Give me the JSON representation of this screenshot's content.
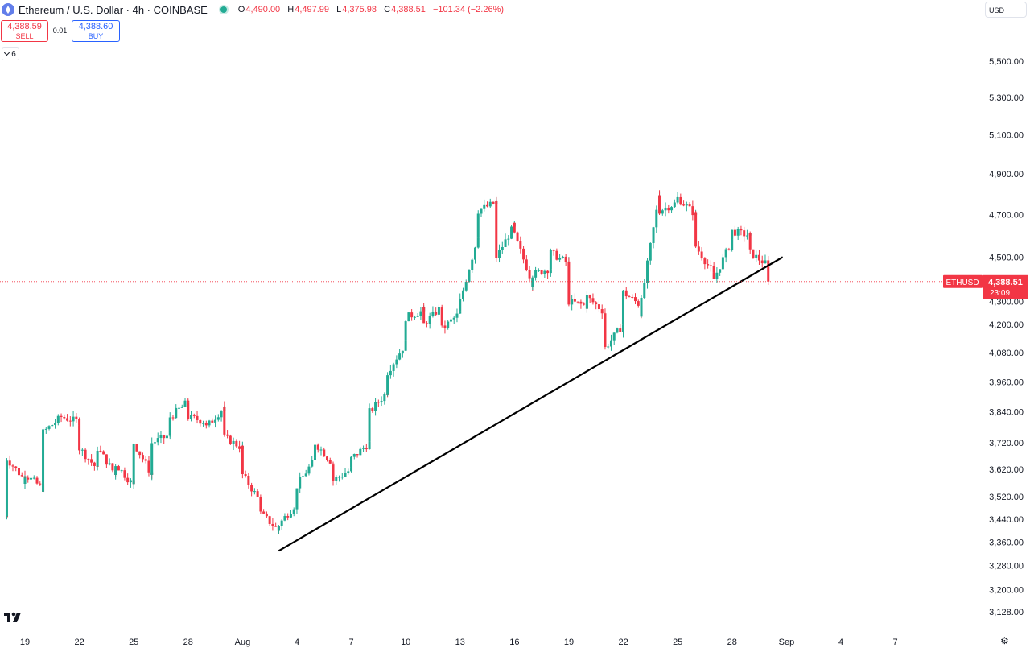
{
  "header": {
    "symbol": "Ethereum / U.S. Dollar · 4h · COINBASE",
    "open_label": "O",
    "open": "4,490.00",
    "high_label": "H",
    "high": "4,497.99",
    "low_label": "L",
    "low": "4,375.98",
    "close_label": "C",
    "close": "4,388.51",
    "change": "−101.34 (−2.26%)"
  },
  "trade": {
    "sell_price": "4,388.59",
    "sell_label": "SELL",
    "spread": "0.01",
    "buy_price": "4,388.60",
    "buy_label": "BUY"
  },
  "indicators_count": "6",
  "currency": "USD",
  "colors": {
    "up": "#22ab94",
    "down": "#f23645",
    "trendline": "#000000"
  },
  "chart_data": {
    "type": "candlestick",
    "symbol": "ETHUSD",
    "timeframe": "4h",
    "last_price": "4,388.51",
    "countdown": "23:09",
    "y_scale": "log",
    "ylim": [
      3090,
      5620
    ],
    "y_ticks": [
      "5,500.00",
      "5,300.00",
      "5,100.00",
      "4,900.00",
      "4,700.00",
      "4,500.00",
      "4,388.51",
      "4,300.00",
      "4,200.00",
      "4,080.00",
      "3,960.00",
      "3,840.00",
      "3,720.00",
      "3,620.00",
      "3,520.00",
      "3,440.00",
      "3,360.00",
      "3,280.00",
      "3,200.00",
      "3,128.00"
    ],
    "x_labels": [
      "19",
      "22",
      "25",
      "28",
      "Aug",
      "4",
      "7",
      "10",
      "13",
      "16",
      "19",
      "22",
      "25",
      "28",
      "Sep",
      "4",
      "7"
    ],
    "close_path": [
      [
        "07-18",
        3450
      ],
      [
        "07-18",
        3660
      ],
      [
        "07-19",
        3580
      ],
      [
        "07-19",
        3600
      ],
      [
        "07-20",
        3550
      ],
      [
        "07-20",
        3760
      ],
      [
        "07-21",
        3820
      ],
      [
        "07-22",
        3800
      ],
      [
        "07-22",
        3700
      ],
      [
        "07-23",
        3620
      ],
      [
        "07-23",
        3700
      ],
      [
        "07-24",
        3600
      ],
      [
        "07-24",
        3640
      ],
      [
        "07-25",
        3560
      ],
      [
        "07-25",
        3720
      ],
      [
        "07-26",
        3600
      ],
      [
        "07-26",
        3720
      ],
      [
        "07-27",
        3750
      ],
      [
        "07-27",
        3820
      ],
      [
        "07-28",
        3880
      ],
      [
        "07-28",
        3820
      ],
      [
        "07-29",
        3800
      ],
      [
        "07-29",
        3780
      ],
      [
        "07-30",
        3860
      ],
      [
        "07-30",
        3740
      ],
      [
        "07-31",
        3700
      ],
      [
        "07-31",
        3600
      ],
      [
        "08-01",
        3500
      ],
      [
        "08-01",
        3460
      ],
      [
        "08-02",
        3400
      ],
      [
        "08-02",
        3420
      ],
      [
        "08-03",
        3500
      ],
      [
        "08-03",
        3560
      ],
      [
        "08-04",
        3660
      ],
      [
        "08-04",
        3720
      ],
      [
        "08-05",
        3640
      ],
      [
        "08-05",
        3580
      ],
      [
        "08-06",
        3620
      ],
      [
        "08-06",
        3660
      ],
      [
        "08-07",
        3720
      ],
      [
        "08-07",
        3840
      ],
      [
        "08-08",
        3920
      ],
      [
        "08-08",
        4000
      ],
      [
        "08-09",
        4120
      ],
      [
        "08-09",
        4230
      ],
      [
        "08-10",
        4260
      ],
      [
        "08-10",
        4200
      ],
      [
        "08-11",
        4280
      ],
      [
        "08-11",
        4180
      ],
      [
        "08-12",
        4250
      ],
      [
        "08-12",
        4300
      ],
      [
        "08-13",
        4600
      ],
      [
        "08-13",
        4720
      ],
      [
        "08-14",
        4760
      ],
      [
        "08-14",
        4740
      ],
      [
        "08-14",
        4500
      ],
      [
        "08-15",
        4650
      ],
      [
        "08-15",
        4600
      ],
      [
        "08-16",
        4380
      ],
      [
        "08-16",
        4420
      ],
      [
        "08-17",
        4450
      ],
      [
        "08-17",
        4520
      ],
      [
        "08-18",
        4470
      ],
      [
        "08-18",
        4300
      ],
      [
        "08-19",
        4280
      ],
      [
        "08-19",
        4320
      ],
      [
        "08-20",
        4250
      ],
      [
        "08-20",
        4100
      ],
      [
        "08-21",
        4200
      ],
      [
        "08-21",
        4340
      ],
      [
        "08-22",
        4280
      ],
      [
        "08-22",
        4250
      ],
      [
        "08-22",
        4300
      ],
      [
        "08-23",
        4800
      ],
      [
        "08-23",
        4720
      ],
      [
        "08-24",
        4760
      ],
      [
        "08-24",
        4780
      ],
      [
        "08-25",
        4700
      ],
      [
        "08-25",
        4550
      ],
      [
        "08-26",
        4420
      ],
      [
        "08-26",
        4400
      ],
      [
        "08-27",
        4580
      ],
      [
        "08-27",
        4620
      ],
      [
        "08-28",
        4600
      ],
      [
        "08-28",
        4520
      ],
      [
        "08-29",
        4460
      ],
      [
        "08-29",
        4388.51
      ]
    ],
    "trendline": {
      "from": [
        "08-02",
        3330
      ],
      "to": [
        "08-29",
        4500
      ]
    }
  }
}
